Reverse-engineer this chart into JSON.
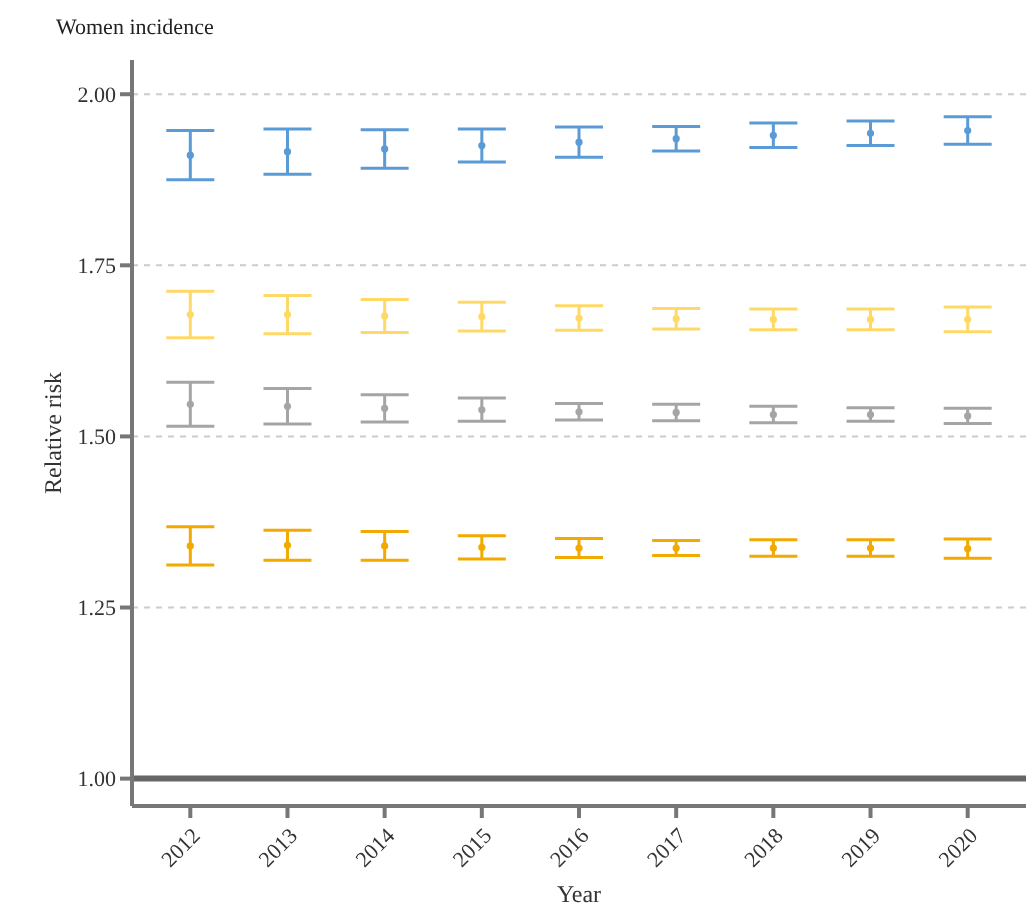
{
  "chart_data": {
    "type": "scatter",
    "title": "Women incidence",
    "xlabel": "Year",
    "ylabel": "Relative risk",
    "categories": [
      "2012",
      "2013",
      "2014",
      "2015",
      "2016",
      "2017",
      "2018",
      "2019",
      "2020"
    ],
    "series": [
      {
        "color": "#5b9bd5",
        "values": [
          1.911,
          1.916,
          1.92,
          1.925,
          1.93,
          1.935,
          1.94,
          1.943,
          1.947
        ],
        "errors": [
          0.036,
          0.033,
          0.028,
          0.024,
          0.022,
          0.018,
          0.018,
          0.018,
          0.02
        ]
      },
      {
        "color": "#ffd966",
        "values": [
          1.678,
          1.678,
          1.676,
          1.675,
          1.673,
          1.672,
          1.671,
          1.671,
          1.671
        ],
        "errors": [
          0.034,
          0.028,
          0.024,
          0.021,
          0.018,
          0.015,
          0.015,
          0.015,
          0.018
        ]
      },
      {
        "color": "#a5a5a5",
        "values": [
          1.547,
          1.544,
          1.541,
          1.539,
          1.536,
          1.535,
          1.532,
          1.532,
          1.53
        ],
        "errors": [
          0.032,
          0.026,
          0.02,
          0.017,
          0.012,
          0.012,
          0.012,
          0.01,
          0.011
        ]
      },
      {
        "color": "#f2a900",
        "values": [
          1.34,
          1.341,
          1.34,
          1.338,
          1.337,
          1.337,
          1.337,
          1.337,
          1.336
        ],
        "errors": [
          0.028,
          0.022,
          0.021,
          0.017,
          0.014,
          0.011,
          0.012,
          0.012,
          0.014
        ]
      }
    ],
    "ylim": [
      0.96,
      2.05
    ],
    "yticks": [
      {
        "value": 1,
        "label": "1.00"
      },
      {
        "value": 1.25,
        "label": "1.25"
      },
      {
        "value": 1.5,
        "label": "1.50"
      },
      {
        "value": 1.75,
        "label": "1.75"
      },
      {
        "value": 2,
        "label": "2.00"
      }
    ],
    "grid": "y",
    "marker": "circle",
    "legend": false,
    "ref_lines": [
      {
        "axis": "y",
        "value": 1,
        "color": "#666666"
      }
    ]
  }
}
